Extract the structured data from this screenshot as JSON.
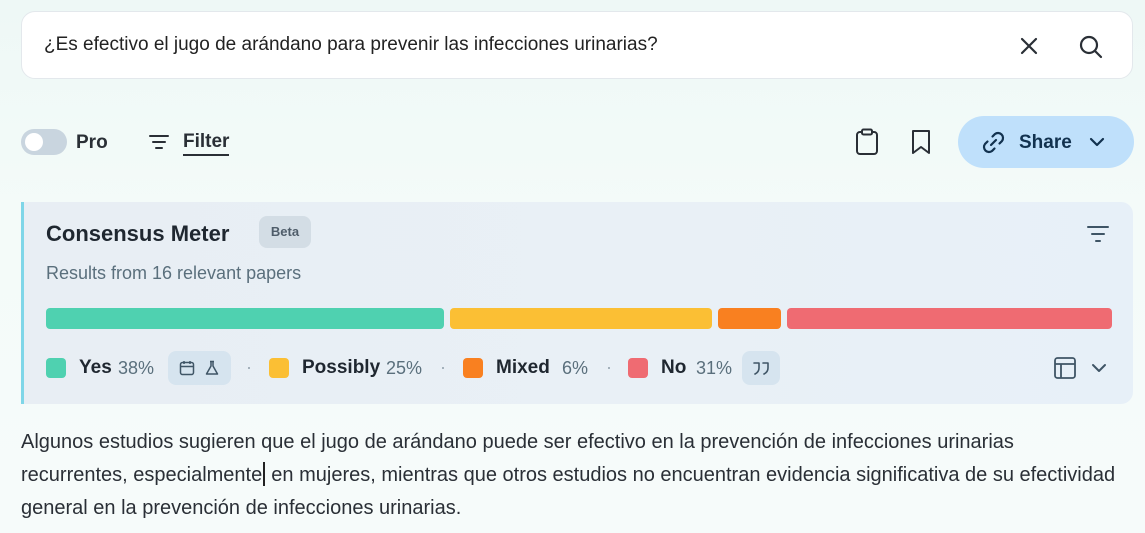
{
  "search": {
    "query": "¿Es efectivo el jugo de arándano para prevenir las infecciones urinarias?",
    "clear_icon": "close-icon",
    "search_icon": "search-icon"
  },
  "toolbar": {
    "pro_label": "Pro",
    "pro_enabled": false,
    "filter_label": "Filter",
    "share_label": "Share"
  },
  "consensus_meter": {
    "title": "Consensus Meter",
    "badge": "Beta",
    "subtitle": "Results from 16 relevant papers",
    "segments": [
      {
        "key": "yes",
        "label": "Yes",
        "percent": 38,
        "percent_text": "38%",
        "color": "#4fd1b0"
      },
      {
        "key": "possibly",
        "label": "Possibly",
        "percent": 25,
        "percent_text": "25%",
        "color": "#fbbf34"
      },
      {
        "key": "mixed",
        "label": "Mixed",
        "percent": 6,
        "percent_text": "6%",
        "color": "#f98020"
      },
      {
        "key": "no",
        "label": "No",
        "percent": 31,
        "percent_text": "31%",
        "color": "#ef6b72"
      }
    ],
    "separator": "·"
  },
  "summary": {
    "text_before_caret": "Algunos estudios sugieren que el jugo de arándano puede ser efectivo en la prevención de infecciones urinarias recurrentes, especialmente",
    "text_after_caret": " en mujeres, mientras que otros estudios no encuentran evidencia significativa de su efectividad general en la prevención de infecciones urinarias."
  }
}
